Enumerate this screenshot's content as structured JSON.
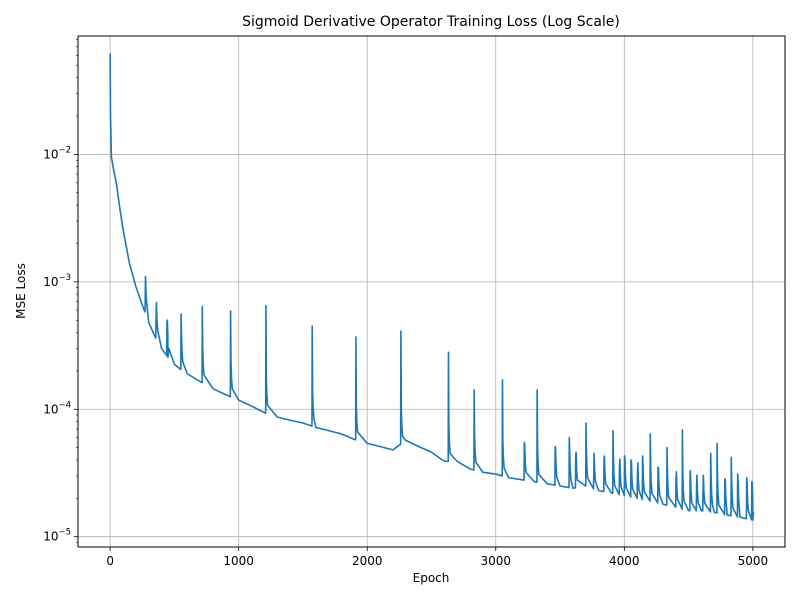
{
  "chart_data": {
    "type": "line",
    "title": "Sigmoid Derivative Operator Training Loss (Log Scale)",
    "xlabel": "Epoch",
    "ylabel": "MSE Loss",
    "xlim": [
      -250,
      5250
    ],
    "ylim": [
      8.3e-06,
      0.085
    ],
    "yscale": "log",
    "grid": true,
    "xticks": [
      0,
      1000,
      2000,
      3000,
      4000,
      5000
    ],
    "xtick_labels": [
      "0",
      "1000",
      "2000",
      "3000",
      "4000",
      "5000"
    ],
    "yticks": [
      {
        "value": 1e-05,
        "base": "10",
        "exp": "−5"
      },
      {
        "value": 0.0001,
        "base": "10",
        "exp": "−4"
      },
      {
        "value": 0.001,
        "base": "10",
        "exp": "−3"
      },
      {
        "value": 0.01,
        "base": "10",
        "exp": "−2"
      }
    ],
    "series": [
      {
        "color": "#1f77b4",
        "baseline": [
          [
            0,
            0.062
          ],
          [
            3,
            0.02
          ],
          [
            10,
            0.0095
          ],
          [
            25,
            0.0078
          ],
          [
            50,
            0.0058
          ],
          [
            75,
            0.0038
          ],
          [
            100,
            0.0026
          ],
          [
            150,
            0.0014
          ],
          [
            200,
            0.00092
          ],
          [
            250,
            0.00066
          ],
          [
            300,
            0.00048
          ],
          [
            350,
            0.00037
          ],
          [
            400,
            0.0003
          ],
          [
            450,
            0.000255
          ],
          [
            500,
            0.000225
          ],
          [
            550,
            0.000205
          ],
          [
            600,
            0.00019
          ],
          [
            700,
            0.000165
          ],
          [
            800,
            0.000145
          ],
          [
            900,
            0.00013
          ],
          [
            1000,
            0.000118
          ],
          [
            1100,
            0.000106
          ],
          [
            1200,
            9.4e-05
          ],
          [
            1300,
            8.7e-05
          ],
          [
            1400,
            8.2e-05
          ],
          [
            1500,
            7.8e-05
          ],
          [
            1600,
            7.2e-05
          ],
          [
            1700,
            6.8e-05
          ],
          [
            1800,
            6.4e-05
          ],
          [
            1900,
            5.8e-05
          ],
          [
            2000,
            5.4e-05
          ],
          [
            2100,
            5.1e-05
          ],
          [
            2200,
            4.8e-05
          ],
          [
            2300,
            5.7e-05
          ],
          [
            2400,
            5.1e-05
          ],
          [
            2500,
            4.6e-05
          ],
          [
            2600,
            3.9e-05
          ],
          [
            2700,
            3.9e-05
          ],
          [
            2800,
            3.4e-05
          ],
          [
            2900,
            3.2e-05
          ],
          [
            3000,
            3.1e-05
          ],
          [
            3100,
            2.9e-05
          ],
          [
            3200,
            2.8e-05
          ],
          [
            3300,
            2.7e-05
          ],
          [
            3400,
            2.6e-05
          ],
          [
            3500,
            2.5e-05
          ],
          [
            3600,
            2.4e-05
          ],
          [
            3700,
            2.5e-05
          ],
          [
            3800,
            2.3e-05
          ],
          [
            3900,
            2.2e-05
          ],
          [
            4000,
            2.1e-05
          ],
          [
            4100,
            2e-05
          ],
          [
            4200,
            1.9e-05
          ],
          [
            4300,
            1.8e-05
          ],
          [
            4400,
            1.7e-05
          ],
          [
            4500,
            1.6e-05
          ],
          [
            4600,
            1.6e-05
          ],
          [
            4700,
            1.55e-05
          ],
          [
            4800,
            1.48e-05
          ],
          [
            4900,
            1.42e-05
          ],
          [
            5000,
            1.35e-05
          ]
        ],
        "spikes": [
          [
            270,
            0.00062
          ],
          [
            355,
            0.00049
          ],
          [
            440,
            0.00048
          ],
          [
            550,
            0.00056
          ],
          [
            715,
            0.00064
          ],
          [
            935,
            0.00059
          ],
          [
            1210,
            0.00065
          ],
          [
            1570,
            0.00045
          ],
          [
            1910,
            0.00037
          ],
          [
            2260,
            0.00041
          ],
          [
            2630,
            0.00028
          ],
          [
            2830,
            0.000142
          ],
          [
            3050,
            0.00017
          ],
          [
            3220,
            5.5e-05
          ],
          [
            3320,
            0.000142
          ],
          [
            3460,
            5.1e-05
          ],
          [
            3570,
            6e-05
          ],
          [
            3620,
            4.2e-05
          ],
          [
            3700,
            7.8e-05
          ],
          [
            3760,
            3e-05
          ],
          [
            3840,
            4.1e-05
          ],
          [
            3910,
            6.8e-05
          ],
          [
            3960,
            3.5e-05
          ],
          [
            4000,
            4.3e-05
          ],
          [
            4050,
            4e-05
          ],
          [
            4100,
            3e-05
          ],
          [
            4140,
            4.3e-05
          ],
          [
            4200,
            6.4e-05
          ],
          [
            4260,
            3.5e-05
          ],
          [
            4330,
            5e-05
          ],
          [
            4400,
            2.8e-05
          ],
          [
            4450,
            6.9e-05
          ],
          [
            4510,
            3.3e-05
          ],
          [
            4560,
            2.4e-05
          ],
          [
            4610,
            2.2e-05
          ],
          [
            4670,
            4.5e-05
          ],
          [
            4720,
            5.4e-05
          ],
          [
            4780,
            2.8e-05
          ],
          [
            4830,
            4.2e-05
          ],
          [
            4880,
            3.1e-05
          ],
          [
            4950,
            2.9e-05
          ],
          [
            4990,
            2.7e-05
          ]
        ]
      }
    ]
  }
}
